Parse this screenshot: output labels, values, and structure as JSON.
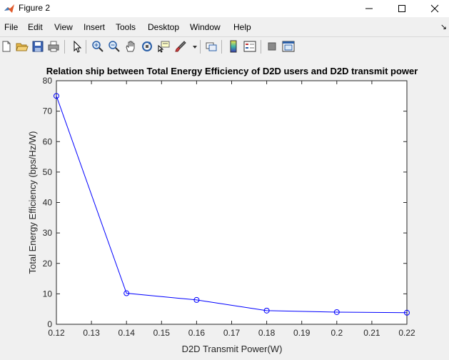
{
  "window": {
    "title": "Figure 2"
  },
  "menu": {
    "items": [
      {
        "label": "File"
      },
      {
        "label": "Edit"
      },
      {
        "label": "View"
      },
      {
        "label": "Insert"
      },
      {
        "label": "Tools"
      },
      {
        "label": "Desktop"
      },
      {
        "label": "Window"
      },
      {
        "label": "Help"
      }
    ],
    "dock_arrow": "↘"
  },
  "toolbar": {
    "icons": [
      "new-figure-icon",
      "open-file-icon",
      "save-icon",
      "print-icon",
      "edit-plot-icon",
      "zoom-in-icon",
      "zoom-out-icon",
      "pan-icon",
      "rotate-3d-icon",
      "data-cursor-icon",
      "brush-icon",
      "link-plot-icon",
      "insert-colorbar-icon",
      "insert-legend-icon",
      "hide-plot-tools-icon",
      "show-plot-tools-icon"
    ]
  },
  "colors": {
    "line": "#0000ff",
    "axes": "#262626",
    "background": "#f0f0f0"
  },
  "chart_data": {
    "type": "line",
    "title": "Relation ship between Total Energy Efficiency of D2D users and D2D transmit power",
    "xlabel": "D2D Transmit Power(W)",
    "ylabel": "Total Energy Efficiency (bps/Hz/W)",
    "xlim": [
      0.12,
      0.22
    ],
    "ylim": [
      0,
      80
    ],
    "xticks": [
      "0.12",
      "0.13",
      "0.14",
      "0.15",
      "0.16",
      "0.17",
      "0.18",
      "0.19",
      "0.2",
      "0.21",
      "0.22"
    ],
    "yticks": [
      "0",
      "10",
      "20",
      "30",
      "40",
      "50",
      "60",
      "70",
      "80"
    ],
    "grid": false,
    "marker": "circle",
    "series": [
      {
        "x": [
          0.12,
          0.14,
          0.16,
          0.18,
          0.2,
          0.22
        ],
        "y": [
          75.0,
          10.2,
          8.0,
          4.5,
          4.0,
          3.8
        ]
      }
    ]
  }
}
